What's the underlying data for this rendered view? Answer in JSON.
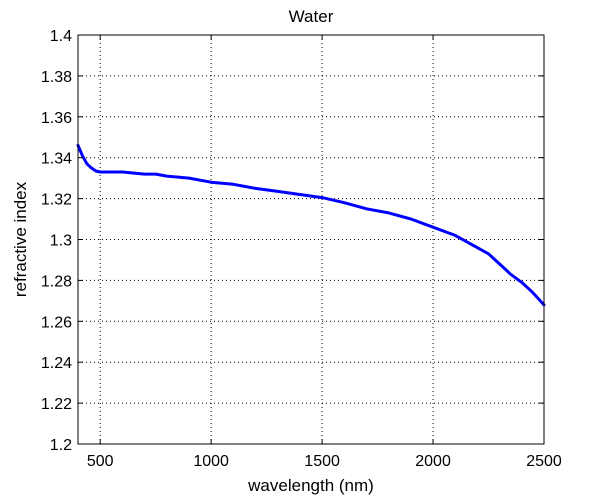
{
  "chart_data": {
    "type": "line",
    "title": "Water",
    "xlabel": "wavelength (nm)",
    "ylabel": "refractive index",
    "xlim": [
      400,
      2500
    ],
    "ylim": [
      1.2,
      1.4
    ],
    "xticks": [
      500,
      1000,
      1500,
      2000,
      2500
    ],
    "yticks": [
      1.2,
      1.22,
      1.24,
      1.26,
      1.28,
      1.3,
      1.32,
      1.34,
      1.36,
      1.38,
      1.4
    ],
    "xtick_labels": [
      "500",
      "1000",
      "1500",
      "2000",
      "2500"
    ],
    "ytick_labels": [
      "1.2",
      "1.22",
      "1.24",
      "1.26",
      "1.28",
      "1.3",
      "1.32",
      "1.34",
      "1.36",
      "1.38",
      "1.4"
    ],
    "grid": true,
    "line_color": "#0000ff",
    "series": [
      {
        "x": [
          400,
          420,
          440,
          460,
          480,
          500,
          550,
          600,
          700,
          750,
          800,
          900,
          1000,
          1100,
          1200,
          1300,
          1400,
          1500,
          1600,
          1700,
          1800,
          1900,
          2000,
          2100,
          2200,
          2250,
          2300,
          2350,
          2400,
          2450,
          2500
        ],
        "y": [
          1.346,
          1.341,
          1.337,
          1.335,
          1.3335,
          1.333,
          1.333,
          1.333,
          1.332,
          1.332,
          1.331,
          1.33,
          1.328,
          1.327,
          1.325,
          1.3235,
          1.322,
          1.3205,
          1.318,
          1.315,
          1.313,
          1.31,
          1.306,
          1.302,
          1.296,
          1.293,
          1.288,
          1.283,
          1.279,
          1.274,
          1.268
        ]
      }
    ]
  }
}
